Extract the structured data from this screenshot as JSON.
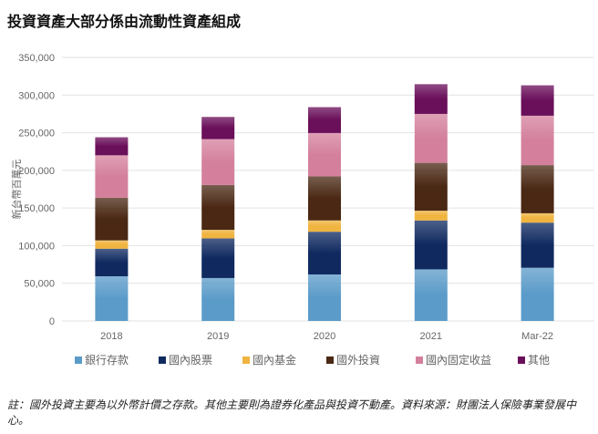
{
  "title": "投資資產大部分係由流動性資產組成",
  "note": "註：國外投資主要為以外幣計價之存款。其他主要則為證券化產品與投資不動產。資料來源：財團法人保險事業發展中心。",
  "chart_data": {
    "type": "bar",
    "stacked": true,
    "title": "",
    "xlabel": "",
    "ylabel": "新台幣百萬元",
    "ylim": [
      0,
      350000
    ],
    "yticks": [
      0,
      50000,
      100000,
      150000,
      200000,
      250000,
      300000,
      350000
    ],
    "ytick_labels": [
      "0",
      "50,000",
      "100,000",
      "150,000",
      "200,000",
      "250,000",
      "300,000",
      "350,000"
    ],
    "grid": true,
    "legend": "bottom",
    "categories": [
      "2018",
      "2019",
      "2020",
      "2021",
      "Mar-22"
    ],
    "series": [
      {
        "name": "銀行存款",
        "color": "#5b9bc9",
        "values": [
          59300,
          57000,
          61700,
          68500,
          70600
        ]
      },
      {
        "name": "國內股票",
        "color": "#102a60",
        "values": [
          36700,
          52700,
          56800,
          65000,
          60000
        ]
      },
      {
        "name": "國內基金",
        "color": "#f0b440",
        "values": [
          11000,
          11300,
          15000,
          12900,
          12400
        ]
      },
      {
        "name": "國外投資",
        "color": "#4a2814",
        "values": [
          56700,
          59600,
          58500,
          63600,
          64000
        ]
      },
      {
        "name": "國內固定收益",
        "color": "#d4809c",
        "values": [
          56300,
          60900,
          57600,
          65000,
          65600
        ]
      },
      {
        "name": "其他",
        "color": "#6a0f5a",
        "values": [
          24000,
          29500,
          34400,
          39500,
          40400
        ]
      }
    ]
  }
}
